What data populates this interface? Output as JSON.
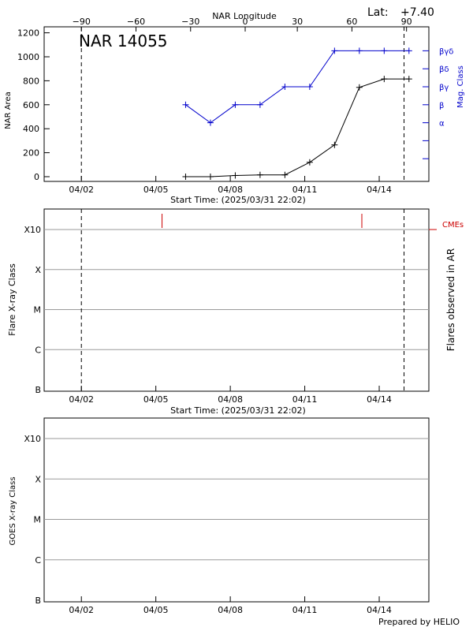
{
  "header": {
    "lat_label": "Lat:",
    "lat_value": "+7.40",
    "region_title": "NAR 14055",
    "longitude_title": "NAR Longitude",
    "footer": "Prepared by HELIO"
  },
  "colors": {
    "area": "#000000",
    "mag": "#0000cc",
    "cme": "#cc0000",
    "grid": "#9a9a9a"
  },
  "chart_data": [
    {
      "type": "line",
      "panel": "area-magclass",
      "title": "NAR 14055",
      "xlabel": "Start Time: (2025/03/31 22:02)",
      "ylabel": "NAR Area",
      "y2label": "Mag. Class",
      "top_axis_label": "NAR Longitude",
      "xlim": [
        0,
        15.5
      ],
      "ylim": [
        0,
        1250
      ],
      "x_ticks": [
        {
          "x": 1.5,
          "label": "04/02"
        },
        {
          "x": 4.5,
          "label": "04/05"
        },
        {
          "x": 7.5,
          "label": "04/08"
        },
        {
          "x": 10.5,
          "label": "04/11"
        },
        {
          "x": 13.5,
          "label": "04/14"
        }
      ],
      "top_ticks": [
        {
          "x": 1.5,
          "label": "−90"
        },
        {
          "x": 3.7,
          "label": "−60"
        },
        {
          "x": 5.9,
          "label": "−30"
        },
        {
          "x": 8.1,
          "label": "0"
        },
        {
          "x": 10.2,
          "label": "30"
        },
        {
          "x": 12.4,
          "label": "60"
        },
        {
          "x": 14.6,
          "label": "90"
        }
      ],
      "y_ticks": [
        0,
        200,
        400,
        600,
        800,
        1000,
        1200
      ],
      "mag_ticks": [
        {
          "y": 150,
          "label": ""
        },
        {
          "y": 300,
          "label": ""
        },
        {
          "y": 450,
          "label": "α"
        },
        {
          "y": 600,
          "label": "β"
        },
        {
          "y": 750,
          "label": "βγ"
        },
        {
          "y": 900,
          "label": "βδ"
        },
        {
          "y": 1050,
          "label": "βγδ"
        }
      ],
      "vlines": [
        1.5,
        14.5
      ],
      "series": [
        {
          "name": "NAR Area",
          "x": [
            5.7,
            6.7,
            7.7,
            8.7,
            9.7,
            10.7,
            11.7,
            12.7,
            13.7,
            14.7
          ],
          "values": [
            0,
            0,
            10,
            15,
            15,
            120,
            265,
            745,
            815,
            815
          ]
        },
        {
          "name": "Mag. Class",
          "x": [
            5.7,
            6.7,
            7.7,
            8.7,
            9.7,
            10.7,
            11.7,
            12.7,
            13.7,
            14.7
          ],
          "values": [
            600,
            450,
            600,
            600,
            750,
            750,
            1050,
            1050,
            1050,
            1050
          ]
        }
      ]
    },
    {
      "type": "scatter",
      "panel": "flares",
      "xlabel": "Start Time: (2025/03/31 22:02)",
      "ylabel": "Flare X-ray Class",
      "y2label": "Flares observed in AR",
      "legend": "CMEs",
      "xlim": [
        0,
        15.5
      ],
      "categories": [
        "B",
        "C",
        "M",
        "X",
        "X10"
      ],
      "x_ticks": [
        "04/02",
        "04/05",
        "04/08",
        "04/11",
        "04/14"
      ],
      "vlines": [
        1.5,
        14.5
      ],
      "cme_times": [
        4.75,
        12.8
      ],
      "flares": []
    },
    {
      "type": "line",
      "panel": "goes",
      "ylabel": "GOES X-ray Class",
      "xlim": [
        0,
        15.5
      ],
      "categories": [
        "B",
        "C",
        "M",
        "X",
        "X10"
      ],
      "x_ticks": [
        "04/02",
        "04/05",
        "04/08",
        "04/11",
        "04/14"
      ],
      "series": []
    }
  ]
}
